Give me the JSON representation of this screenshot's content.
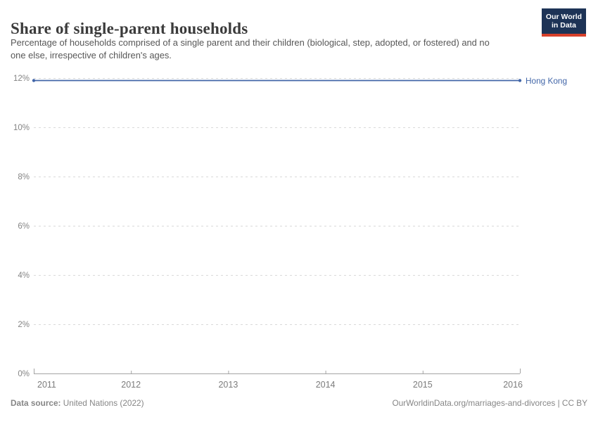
{
  "header": {
    "title": "Share of single-parent households",
    "subtitle": "Percentage of households comprised of a single parent and their children (biological, step, adopted, or fostered) and no one else, irrespective of children's ages.",
    "logo": {
      "line1": "Our World",
      "line2": "in Data"
    }
  },
  "chart_data": {
    "type": "line",
    "title": "Share of single-parent households",
    "x": [
      2011,
      2012,
      2013,
      2014,
      2015,
      2016
    ],
    "series": [
      {
        "name": "Hong Kong",
        "values": [
          11.9,
          11.9,
          11.9,
          11.9,
          11.9,
          11.9
        ],
        "color": "#4266a8"
      }
    ],
    "xlabel": "",
    "ylabel": "",
    "ylim": [
      0,
      12
    ],
    "yticks": [
      0,
      2,
      4,
      6,
      8,
      10,
      12
    ],
    "ytick_suffix": "%",
    "grid": "horizontal-dashed",
    "legend_position": "right-end-label",
    "end_markers": "dots"
  },
  "footer": {
    "source_label": "Data source:",
    "source_value": " United Nations (2022)",
    "credit": "OurWorldinData.org/marriages-and-divorces | CC BY"
  },
  "colors": {
    "line": "#4266a8",
    "entity_label": "#4266a8",
    "gridline": "#d9d9d9",
    "axis": "#a3a3a3",
    "tick_label": "#848484",
    "title": "#3b3b3b",
    "subtitle": "#575757",
    "logo_bg": "#1d3356",
    "logo_red": "#d7402a",
    "footer_text": "#868686"
  }
}
